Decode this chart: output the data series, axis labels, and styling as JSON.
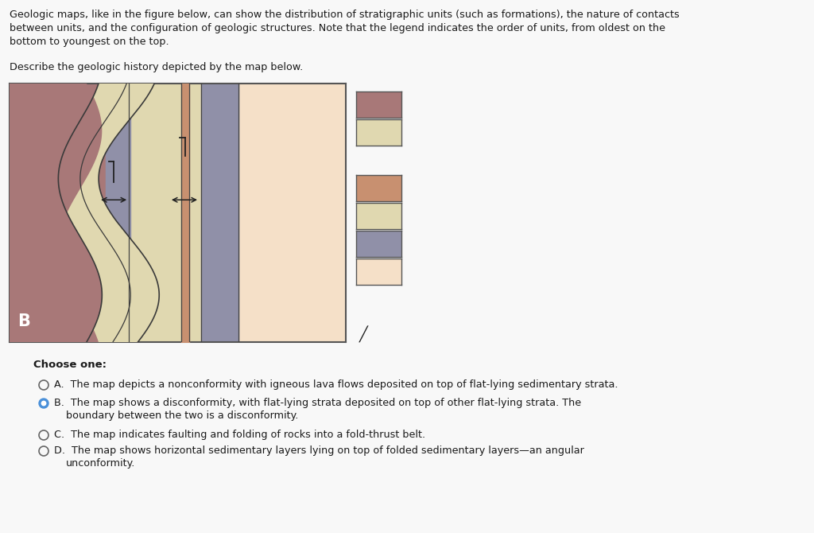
{
  "bg_color": "#f8f8f8",
  "header_text1": "Geologic maps, like in the figure below, can show the distribution of stratigraphic units (such as formations), the nature of contacts",
  "header_text2": "between units, and the configuration of geologic structures. Note that the legend indicates the order of units, from oldest on the",
  "header_text3": "bottom to youngest on the top.",
  "sub_text": "Describe the geologic history depicted by the map below.",
  "colors": {
    "mauve": "#a87878",
    "tan_light": "#e0d8b0",
    "gray": "#9090a8",
    "peach_light": "#f0c8a0",
    "salmon": "#c89070",
    "peach_pale": "#f5e0c8",
    "cream": "#e8ddb0"
  },
  "legend_boxes": [
    {
      "color": "#a87878"
    },
    {
      "color": "#e0d8b0"
    },
    {
      "color": "#c89070"
    },
    {
      "color": "#e0d8b0"
    },
    {
      "color": "#9090a8"
    },
    {
      "color": "#f5e0c8"
    }
  ],
  "choices": [
    {
      "label": "A.",
      "text": "The map depicts a nonconformity with igneous lava flows deposited on top of flat-lying sedimentary strata.",
      "selected": false,
      "multiline": false
    },
    {
      "label": "B.",
      "text": "The map shows a disconformity, with flat-lying strata deposited on top of other flat-lying strata. The boundary between the two is a disconformity.",
      "selected": true,
      "multiline": true
    },
    {
      "label": "C.",
      "text": "The map indicates faulting and folding of rocks into a fold-thrust belt.",
      "selected": false,
      "multiline": false
    },
    {
      "label": "D.",
      "text": "The map shows horizontal sedimentary layers lying on top of folded sedimentary layers—an angular unconformity.",
      "selected": false,
      "multiline": true
    }
  ],
  "choose_one_text": "Choose one:"
}
